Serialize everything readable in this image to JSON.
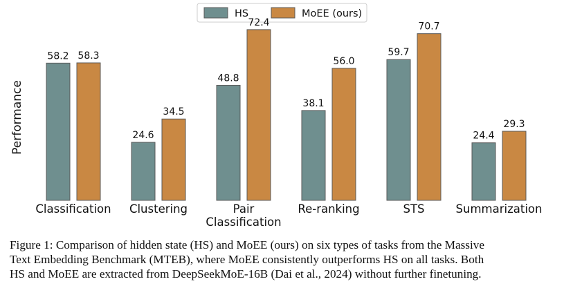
{
  "chart_data": {
    "type": "bar",
    "title": "",
    "xlabel": "",
    "ylabel": "Performance",
    "ylim": [
      0,
      75
    ],
    "grid": false,
    "legend_position": "top-center",
    "categories": [
      "Classification",
      "Clustering",
      "Pair\nClassification",
      "Re-ranking",
      "STS",
      "Summarization"
    ],
    "series": [
      {
        "name": "HS",
        "color": "#6f8f8f",
        "values": [
          58.2,
          24.6,
          48.8,
          38.1,
          59.7,
          24.4
        ]
      },
      {
        "name": "MoEE (ours)",
        "color": "#c98843",
        "values": [
          58.3,
          34.5,
          72.4,
          56.0,
          70.7,
          29.3
        ]
      }
    ]
  },
  "caption": {
    "lines": [
      "Figure 1: Comparison of hidden state (HS) and MoEE (ours) on six types of tasks from the Massive",
      "Text Embedding Benchmark (MTEB), where MoEE consistently outperforms HS on all tasks. Both",
      "HS and MoEE are extracted from DeepSeekMoE-16B (Dai et al., 2024) without further finetuning."
    ]
  }
}
